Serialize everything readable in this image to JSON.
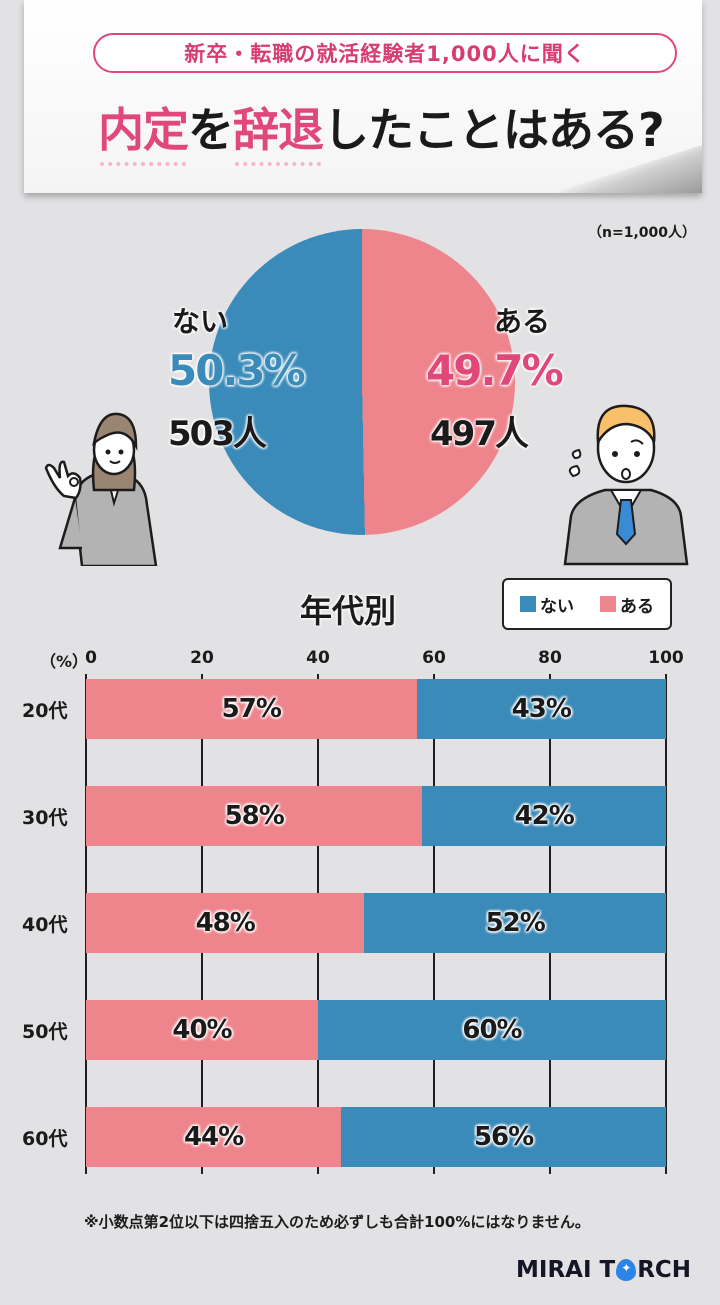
{
  "header": {
    "subtitle": "新卒・転職の就活経験者1,000人に聞く",
    "title_parts": [
      {
        "text": "内定",
        "highlight": true
      },
      {
        "text": "を",
        "highlight": false
      },
      {
        "text": "辞退",
        "highlight": true
      },
      {
        "text": "したことはある?",
        "highlight": false
      }
    ]
  },
  "sample_note": "（n=1,000人）",
  "colors": {
    "nai": "#3b8bba",
    "aru": "#ef858c",
    "accent_pink": "#e0487a",
    "background": "#e2e2e4"
  },
  "overall": {
    "nai": {
      "label": "ない",
      "percent": "50.3%",
      "count": "503人"
    },
    "aru": {
      "label": "ある",
      "percent": "49.7%",
      "count": "497人"
    }
  },
  "section_title": "年代別",
  "legend": [
    {
      "label": "ない",
      "color": "#3b8bba"
    },
    {
      "label": "ある",
      "color": "#ef858c"
    }
  ],
  "axis": {
    "unit": "（%）",
    "ticks": [
      "0",
      "20",
      "40",
      "60",
      "80",
      "100"
    ]
  },
  "footnote": "※小数点第2位以下は四捨五入のため必ずしも合計100%にはなりません。",
  "brand": {
    "pre": "MIRAI T",
    "post": "RCH"
  },
  "chart_data": [
    {
      "type": "pie",
      "title": "内定を辞退したことはある?",
      "note": "n=1,000人",
      "categories": [
        "ない",
        "ある"
      ],
      "values": [
        50.3,
        49.7
      ],
      "counts": [
        503,
        497
      ],
      "colors": [
        "#3b8bba",
        "#ef858c"
      ]
    },
    {
      "type": "bar",
      "orientation": "horizontal",
      "stacked": true,
      "title": "年代別",
      "categories": [
        "20代",
        "30代",
        "40代",
        "50代",
        "60代"
      ],
      "series": [
        {
          "name": "ある",
          "color": "#ef858c",
          "values": [
            57,
            58,
            48,
            40,
            44
          ]
        },
        {
          "name": "ない",
          "color": "#3b8bba",
          "values": [
            43,
            42,
            52,
            60,
            56
          ]
        }
      ],
      "xlabel": "（%）",
      "xlim": [
        0,
        100
      ],
      "xticks": [
        0,
        20,
        40,
        60,
        80,
        100
      ],
      "grid": true,
      "legend_position": "top-right"
    }
  ]
}
